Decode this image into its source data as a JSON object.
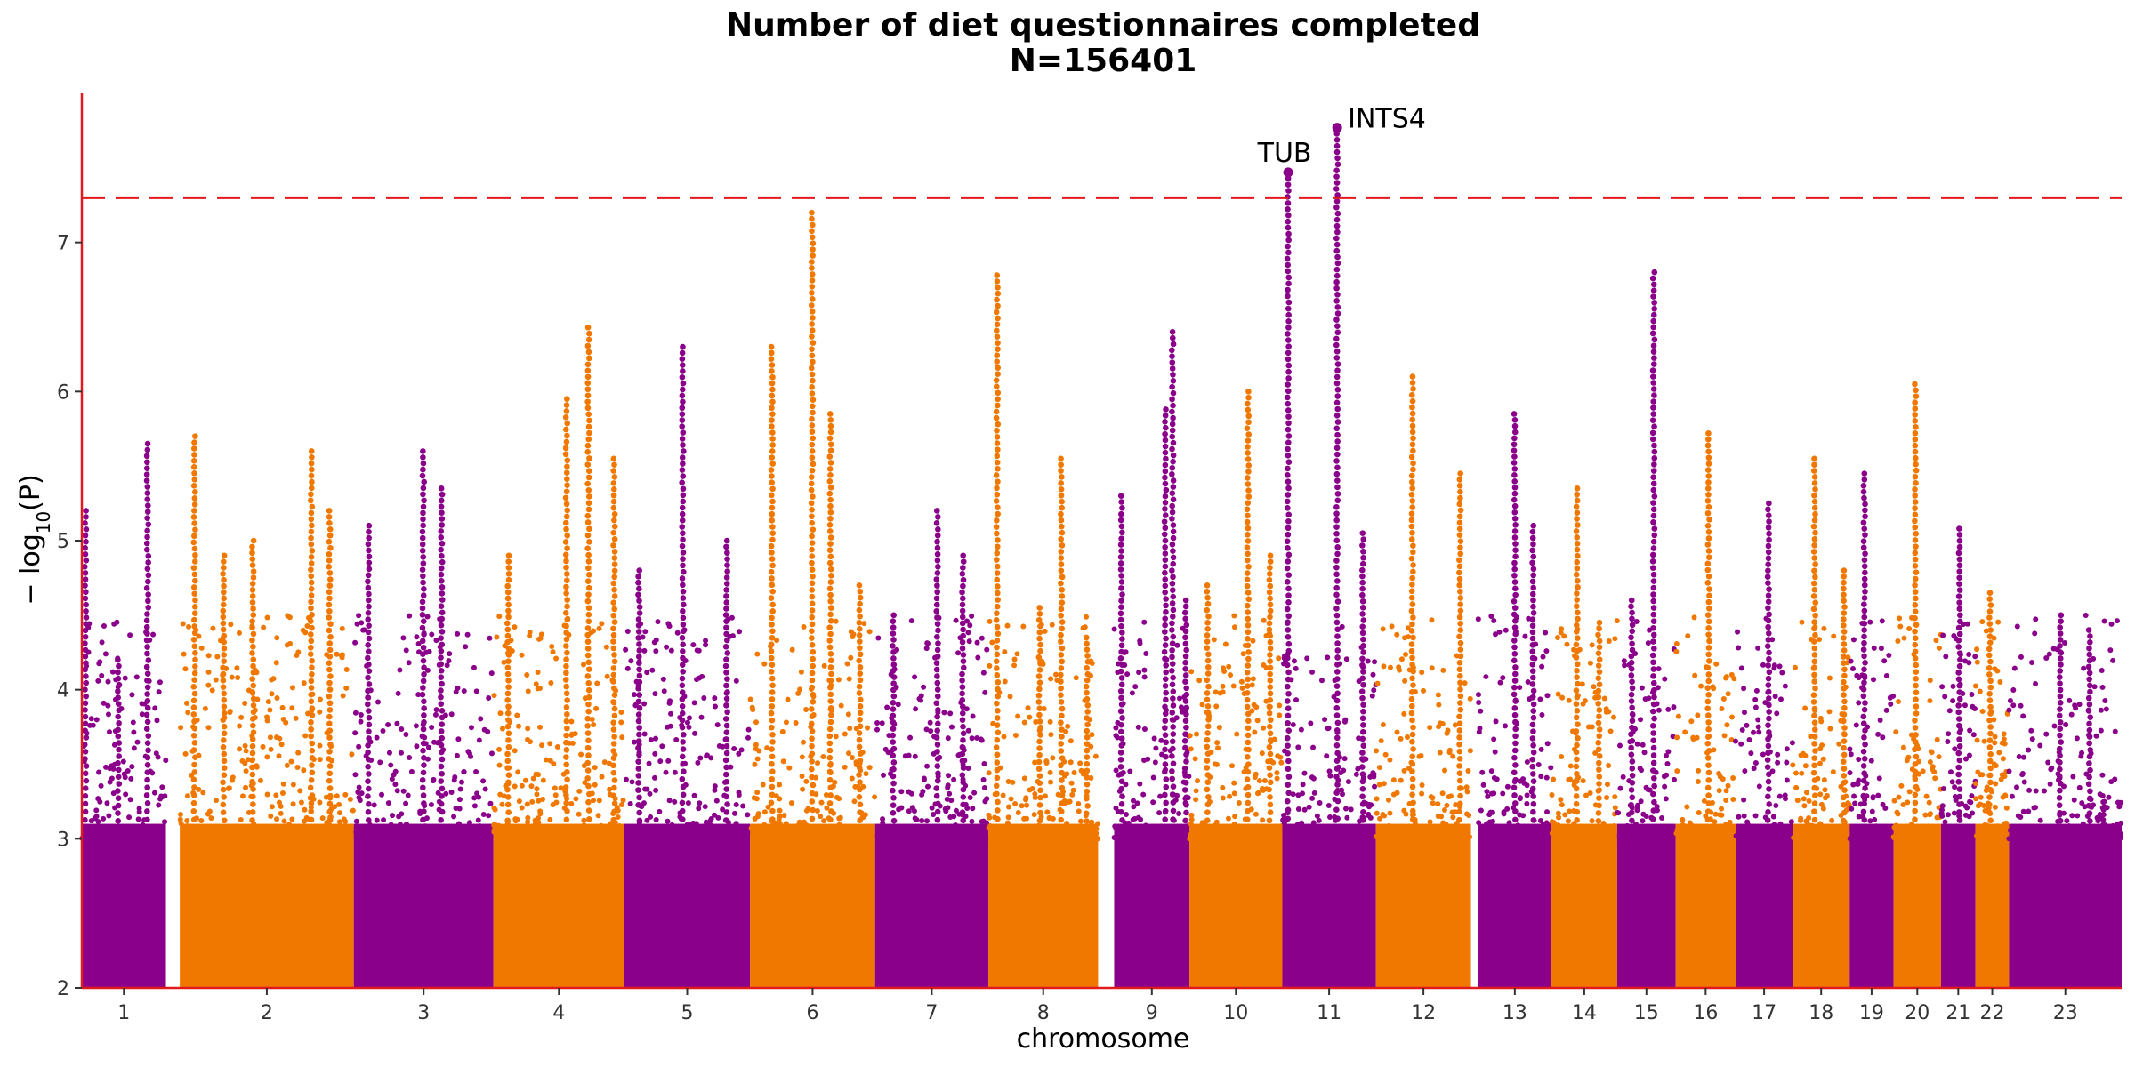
{
  "chart_data": {
    "type": "scatter",
    "subtype": "manhattan",
    "title": "Number of diet questionnaires completed",
    "subtitle": "N=156401",
    "xlabel": "chromosome",
    "ylabel": "− log10(P)",
    "ylabel_parts": {
      "prefix": "− log",
      "sub": "10",
      "suffix": "(P)"
    },
    "ylim": [
      2,
      8
    ],
    "yticks": [
      2,
      3,
      4,
      5,
      6,
      7
    ],
    "significance_threshold": 7.3,
    "threshold_color": "#e31a1c",
    "axis_color": "#e31a1c",
    "grid": false,
    "colors": {
      "odd": "#8b008b",
      "even": "#f07800"
    },
    "chromosomes": [
      {
        "label": "1",
        "start": 0,
        "end": 115,
        "peaks": [
          [
            5,
            5.2
          ],
          [
            50,
            4.2
          ],
          [
            90,
            5.65
          ]
        ]
      },
      {
        "label": "2",
        "start": 134,
        "end": 372,
        "peaks": [
          [
            20,
            5.7
          ],
          [
            60,
            4.9
          ],
          [
            100,
            5.0
          ],
          [
            180,
            5.6
          ],
          [
            205,
            5.2
          ]
        ]
      },
      {
        "label": "3",
        "start": 372,
        "end": 563,
        "peaks": [
          [
            20,
            5.1
          ],
          [
            95,
            5.6
          ],
          [
            120,
            5.35
          ]
        ]
      },
      {
        "label": "4",
        "start": 563,
        "end": 742,
        "peaks": [
          [
            20,
            4.9
          ],
          [
            100,
            5.95
          ],
          [
            130,
            6.43
          ],
          [
            165,
            5.55
          ]
        ]
      },
      {
        "label": "5",
        "start": 742,
        "end": 914,
        "peaks": [
          [
            20,
            4.8
          ],
          [
            80,
            6.3
          ],
          [
            140,
            5.0
          ]
        ]
      },
      {
        "label": "6",
        "start": 914,
        "end": 1085,
        "peaks": [
          [
            30,
            6.3
          ],
          [
            85,
            7.2
          ],
          [
            110,
            5.85
          ],
          [
            150,
            4.7
          ]
        ]
      },
      {
        "label": "7",
        "start": 1085,
        "end": 1240,
        "peaks": [
          [
            25,
            4.5
          ],
          [
            85,
            5.2
          ],
          [
            120,
            4.9
          ]
        ]
      },
      {
        "label": "8",
        "start": 1240,
        "end": 1390,
        "peaks": [
          [
            12,
            6.78
          ],
          [
            70,
            4.55
          ],
          [
            100,
            5.55
          ],
          [
            135,
            4.35
          ]
        ]
      },
      {
        "label": "9",
        "start": 1412,
        "end": 1515,
        "peaks": [
          [
            10,
            5.3
          ],
          [
            70,
            5.88
          ],
          [
            80,
            6.4
          ],
          [
            98,
            4.6
          ]
        ]
      },
      {
        "label": "10",
        "start": 1515,
        "end": 1642,
        "peaks": [
          [
            25,
            4.7
          ],
          [
            80,
            6.0
          ],
          [
            110,
            4.9
          ]
        ]
      },
      {
        "label": "11",
        "start": 1642,
        "end": 1770,
        "peaks": [
          [
            8,
            7.47
          ],
          [
            75,
            7.77
          ],
          [
            110,
            5.05
          ]
        ]
      },
      {
        "label": "12",
        "start": 1770,
        "end": 1900,
        "peaks": [
          [
            50,
            6.1
          ],
          [
            115,
            5.45
          ]
        ]
      },
      {
        "label": "13",
        "start": 1910,
        "end": 2010,
        "peaks": [
          [
            50,
            5.85
          ],
          [
            75,
            5.1
          ]
        ]
      },
      {
        "label": "14",
        "start": 2010,
        "end": 2100,
        "peaks": [
          [
            35,
            5.35
          ],
          [
            65,
            4.45
          ]
        ]
      },
      {
        "label": "15",
        "start": 2100,
        "end": 2180,
        "peaks": [
          [
            20,
            4.6
          ],
          [
            50,
            6.8
          ]
        ]
      },
      {
        "label": "16",
        "start": 2180,
        "end": 2262,
        "peaks": [
          [
            45,
            5.72
          ]
        ]
      },
      {
        "label": "17",
        "start": 2262,
        "end": 2340,
        "peaks": [
          [
            45,
            5.25
          ]
        ]
      },
      {
        "label": "18",
        "start": 2340,
        "end": 2418,
        "peaks": [
          [
            30,
            5.55
          ],
          [
            70,
            4.8
          ]
        ]
      },
      {
        "label": "19",
        "start": 2418,
        "end": 2478,
        "peaks": [
          [
            20,
            5.45
          ]
        ]
      },
      {
        "label": "20",
        "start": 2478,
        "end": 2543,
        "peaks": [
          [
            30,
            6.05
          ]
        ]
      },
      {
        "label": "21",
        "start": 2543,
        "end": 2590,
        "peaks": [
          [
            25,
            5.08
          ]
        ]
      },
      {
        "label": "22",
        "start": 2590,
        "end": 2636,
        "peaks": [
          [
            20,
            4.65
          ]
        ]
      },
      {
        "label": "23",
        "start": 2636,
        "end": 2790,
        "peaks": [
          [
            70,
            4.5
          ],
          [
            110,
            4.4
          ]
        ]
      }
    ],
    "annotations": [
      {
        "label": "TUB",
        "x": 1650,
        "y": 7.47
      },
      {
        "label": "INTS4",
        "x": 1717,
        "y": 7.77
      }
    ]
  }
}
